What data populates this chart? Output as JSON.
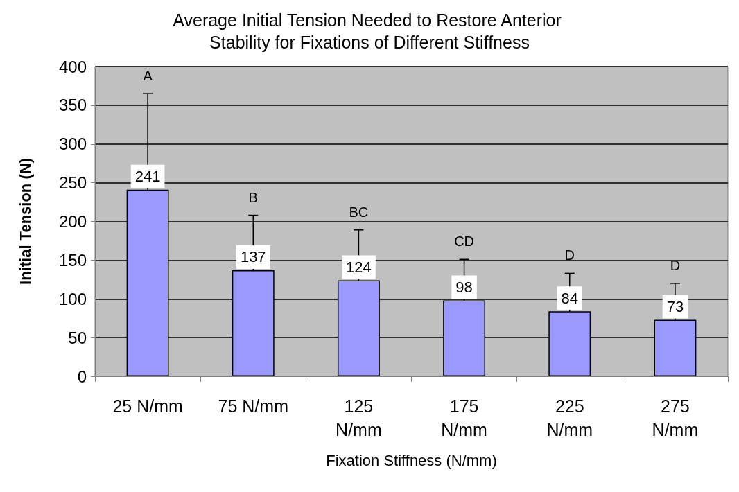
{
  "chart_data": {
    "type": "bar",
    "title": "Average Initial Tension Needed to Restore Anterior Stability for Fixations of Different Stiffness",
    "xlabel": "Fixation Stiffness (N/mm)",
    "ylabel": "Initial Tension (N)",
    "categories": [
      "25 N/mm",
      "75 N/mm",
      "125 N/mm",
      "175 N/mm",
      "225 N/mm",
      "275 N/mm"
    ],
    "values": [
      241,
      137,
      124,
      98,
      84,
      73
    ],
    "errors": [
      124,
      71,
      65,
      53,
      49,
      47
    ],
    "color": "#9999ff",
    "data_labels": true,
    "ylim": [
      0,
      400
    ],
    "yticks": [
      0,
      50,
      100,
      150,
      200,
      250,
      300,
      350,
      400
    ],
    "grid": "y",
    "annotations": [
      "A",
      "B",
      "BC",
      "CD",
      "D",
      "D"
    ]
  }
}
